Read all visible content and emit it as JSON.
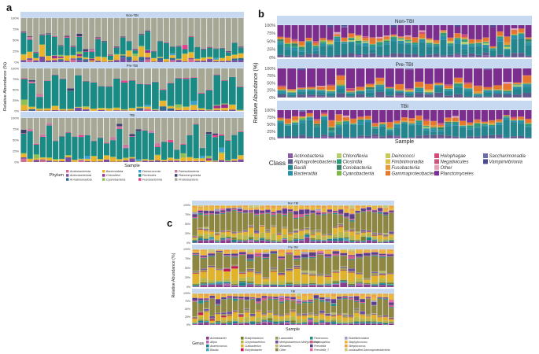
{
  "chart_data": [
    {
      "type": "bar",
      "panel_label": "a",
      "title": "",
      "xlabel": "Sample",
      "ylabel": "Relative Abundance (%)",
      "ylim": [
        0,
        100
      ],
      "y_ticks": [
        "0%",
        "25%",
        "50%",
        "75%",
        "100%"
      ],
      "legend_position": "bottom",
      "legend_title": "Phylum",
      "facets": [
        "Non-TBI",
        "Pre-TBI",
        "TBI"
      ],
      "samples_per_facet": [
        36,
        29,
        35
      ],
      "categories": [
        "Acidobacteriota",
        "Actinobacteriota",
        "Armatimonadota",
        "Bacteroidota",
        "Chloroflexi",
        "Cyanobacteria",
        "Deinococcota",
        "Firmicutes",
        "Fusobacteriota",
        "Patescibacteria",
        "Planctomycetota",
        "Proteobacteria"
      ],
      "colors": [
        "#d36a93",
        "#7a4fa1",
        "#2d6d92",
        "#e9b32a",
        "#9b2d8c",
        "#8dbf52",
        "#3aa0d0",
        "#1a8b84",
        "#e8418c",
        "#c97a9f",
        "#3d3f6e",
        "#a6a895"
      ],
      "mean_composition": {
        "Non-TBI": [
          0,
          3,
          0,
          6,
          0,
          1,
          0,
          24,
          1,
          0,
          1,
          64
        ],
        "Pre-TBI": [
          0,
          1,
          0,
          5,
          0,
          1,
          0,
          62,
          1,
          0,
          0,
          29
        ],
        "TBI": [
          0,
          2,
          0,
          5,
          0,
          1,
          0,
          48,
          1,
          0,
          0,
          43
        ]
      }
    },
    {
      "type": "bar",
      "panel_label": "b",
      "title": "",
      "xlabel": "Sample",
      "ylabel": "Relative Abundance (%)",
      "ylim": [
        0,
        100
      ],
      "y_ticks": [
        "0%",
        "25%",
        "50%",
        "75%",
        "100%"
      ],
      "legend_position": "bottom",
      "legend_title": "Class",
      "facets": [
        "Non-TBI",
        "Pre-TBI",
        "TBI"
      ],
      "samples_per_facet": [
        36,
        26,
        35
      ],
      "categories": [
        "Actinobacteria",
        "Alphaproteobacteria",
        "Bacilli",
        "Bacteroidia",
        "Chloroflexia",
        "Clostridia",
        "Coriobacteriia",
        "Cyanobacteriia",
        "Deinococci",
        "Fimbriimonadia",
        "Fusobacteriia",
        "Gammaproteobacteria",
        "Holophagae",
        "Negativicutes",
        "Other",
        "Planctomycetes",
        "Saccharimonadia",
        "Vampirivibrionia"
      ],
      "colors": [
        "#8a5aa7",
        "#5e5b8c",
        "#25858e",
        "#2c8fa9",
        "#b5cf6b",
        "#2f9a7a",
        "#3a7f6a",
        "#7db84a",
        "#c7c95a",
        "#d9c24a",
        "#e29a3a",
        "#e7772c",
        "#d44a7a",
        "#c8577a",
        "#e0a2b8",
        "#7b2e8e",
        "#6c6da7",
        "#4a4c8c"
      ],
      "mean_composition": {
        "Non-TBI": [
          2,
          8,
          30,
          6,
          0,
          4,
          1,
          1,
          0,
          0,
          2,
          8,
          0,
          1,
          0,
          37,
          0,
          0
        ],
        "Pre-TBI": [
          1,
          7,
          12,
          5,
          0,
          2,
          1,
          1,
          0,
          0,
          2,
          10,
          0,
          1,
          0,
          58,
          0,
          0
        ],
        "TBI": [
          2,
          6,
          40,
          6,
          0,
          3,
          1,
          1,
          0,
          0,
          2,
          9,
          0,
          1,
          0,
          29,
          0,
          0
        ]
      }
    },
    {
      "type": "bar",
      "panel_label": "c",
      "title": "",
      "xlabel": "Sample",
      "ylabel": "Relative Abundance (%)",
      "ylim": [
        0,
        100
      ],
      "y_ticks": [
        "0%",
        "25%",
        "50%",
        "75%",
        "100%"
      ],
      "legend_position": "bottom",
      "legend_title": "Genus",
      "facets": [
        "Non-TBI",
        "Pre-TBI",
        "TBI"
      ],
      "samples_per_facet": [
        36,
        26,
        35
      ],
      "categories": [
        "Acinetobacter",
        "Afipia",
        "Anaerococcus",
        "Blautia",
        "Bradyrhizobium",
        "Corynebacterium",
        "Cutibacterium",
        "Enhydrobacter",
        "Lawsonella",
        "Methylobacterium-Methylorubrum",
        "Moraxella",
        "Other",
        "Paracoccus",
        "Peptoniphilus",
        "Prevotella",
        "Prevotella_7",
        "Rubellimicrobium",
        "Staphylococcus",
        "Streptococcus",
        "unclassified Gammaproteobacteria"
      ],
      "colors": [
        "#8a3d8c",
        "#b06ab0",
        "#1f7f8c",
        "#3ea6b4",
        "#7a7f2e",
        "#b8b84c",
        "#e0b32a",
        "#c2185b",
        "#9c9a5c",
        "#6e4e9e",
        "#b9b96b",
        "#8e8741",
        "#2b8f8a",
        "#d45c8c",
        "#5a3f8a",
        "#e46aa0",
        "#9ea0c8",
        "#e8b83a",
        "#f0a040",
        "#c8c878"
      ],
      "mean_composition": {
        "Non-TBI": [
          4,
          1,
          3,
          1,
          2,
          8,
          9,
          1,
          2,
          2,
          1,
          42,
          2,
          3,
          6,
          1,
          0,
          7,
          3,
          2
        ],
        "Pre-TBI": [
          3,
          1,
          2,
          1,
          2,
          6,
          20,
          1,
          2,
          2,
          1,
          40,
          2,
          2,
          5,
          1,
          0,
          6,
          2,
          1
        ],
        "TBI": [
          3,
          1,
          3,
          1,
          2,
          7,
          10,
          1,
          2,
          2,
          1,
          43,
          2,
          3,
          6,
          1,
          0,
          6,
          3,
          2
        ]
      }
    }
  ]
}
